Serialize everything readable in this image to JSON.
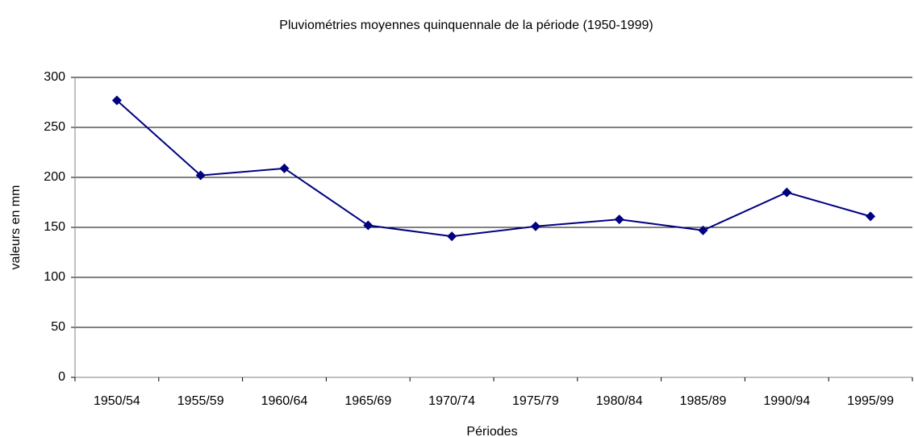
{
  "chart_data": {
    "type": "line",
    "title": "Pluviométries moyennes quinquennale de la période (1950-1999)",
    "x_label": "Périodes",
    "y_label": "valeurs en mm",
    "categories": [
      "1950/54",
      "1955/59",
      "1960/64",
      "1965/69",
      "1970/74",
      "1975/79",
      "1980/84",
      "1985/89",
      "1990/94",
      "1995/99"
    ],
    "series": [
      {
        "color": "#000080",
        "values": [
          277,
          202,
          209,
          152,
          141,
          151,
          158,
          147,
          185,
          161
        ]
      }
    ],
    "ylim": [
      0,
      300
    ],
    "yticks": [
      0,
      50,
      100,
      150,
      200,
      250,
      300
    ],
    "grid": true
  }
}
